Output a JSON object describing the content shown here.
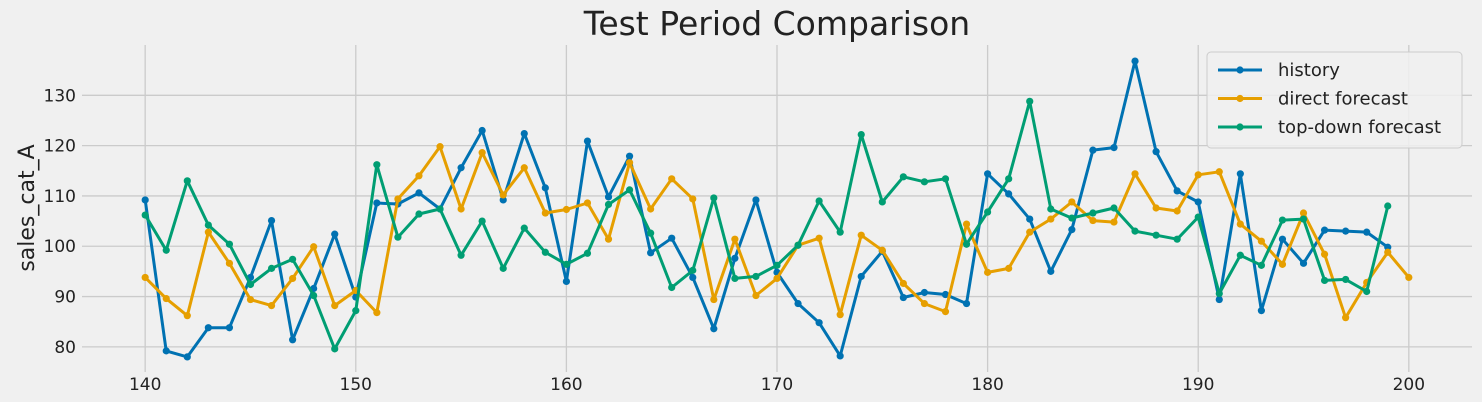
{
  "chart_data": {
    "type": "line",
    "title": "Test Period Comparison",
    "xlabel": "",
    "ylabel": "sales_cat_A",
    "xlim": [
      137,
      203
    ],
    "ylim": [
      75,
      140
    ],
    "xticks": [
      140,
      150,
      160,
      170,
      180,
      190,
      200
    ],
    "yticks": [
      80,
      90,
      100,
      110,
      120,
      130
    ],
    "grid": true,
    "legend_position": "top-right",
    "series": [
      {
        "name": "history",
        "color": "#0072b2",
        "x_start": 140,
        "values": [
          109.2,
          79.2,
          78.0,
          83.8,
          83.8,
          93.8,
          105.1,
          81.4,
          91.6,
          102.4,
          89.9,
          108.6,
          108.4,
          110.6,
          107.4,
          115.6,
          123.0,
          109.2,
          122.4,
          111.6,
          93.0,
          120.9,
          109.8,
          117.9,
          98.7,
          101.6,
          93.8,
          83.6,
          97.6,
          109.2,
          94.8,
          88.6,
          84.8,
          78.2,
          94.0,
          99.0,
          89.8,
          90.8,
          90.4,
          88.6,
          114.4,
          110.4,
          105.4,
          95.0,
          103.3,
          119.1,
          119.6,
          136.8,
          118.8,
          111.0,
          108.8,
          89.4,
          114.4,
          87.2,
          101.4,
          96.6,
          103.2,
          103.0,
          102.8,
          99.8
        ]
      },
      {
        "name": "direct forecast",
        "color": "#e69f00",
        "x_start": 140,
        "values": [
          93.8,
          89.6,
          86.2,
          102.8,
          96.6,
          89.4,
          88.2,
          93.6,
          99.9,
          88.2,
          91.2,
          86.8,
          109.4,
          114.0,
          119.8,
          107.4,
          118.6,
          110.2,
          115.6,
          106.6,
          107.3,
          108.6,
          101.4,
          116.6,
          107.4,
          113.4,
          109.4,
          89.4,
          101.4,
          90.2,
          93.6,
          100.2,
          101.6,
          86.4,
          102.2,
          99.2,
          92.6,
          88.6,
          87.0,
          104.4,
          94.8,
          95.6,
          102.8,
          105.4,
          108.8,
          105.1,
          104.8,
          114.4,
          107.6,
          107.0,
          114.2,
          114.8,
          104.4,
          101.0,
          96.4,
          106.6,
          98.4,
          85.8,
          92.8,
          98.8,
          93.8
        ]
      },
      {
        "name": "top-down forecast",
        "color": "#009e73",
        "x_start": 140,
        "values": [
          106.2,
          99.2,
          113.0,
          104.2,
          100.4,
          92.4,
          95.6,
          97.4,
          90.2,
          79.6,
          87.2,
          116.2,
          101.8,
          106.4,
          107.4,
          98.2,
          105.0,
          95.6,
          103.6,
          98.8,
          96.4,
          98.6,
          108.3,
          111.2,
          102.6,
          91.8,
          95.2,
          109.6,
          93.6,
          94.0,
          96.2,
          100.2,
          109.0,
          102.8,
          122.2,
          108.8,
          113.8,
          112.8,
          113.4,
          100.4,
          106.8,
          113.4,
          128.8,
          107.4,
          105.6,
          106.6,
          107.6,
          103.0,
          102.2,
          101.4,
          105.8,
          90.6,
          98.2,
          96.2,
          105.2,
          105.4,
          93.2,
          93.4,
          91.0,
          108.0
        ]
      }
    ]
  }
}
